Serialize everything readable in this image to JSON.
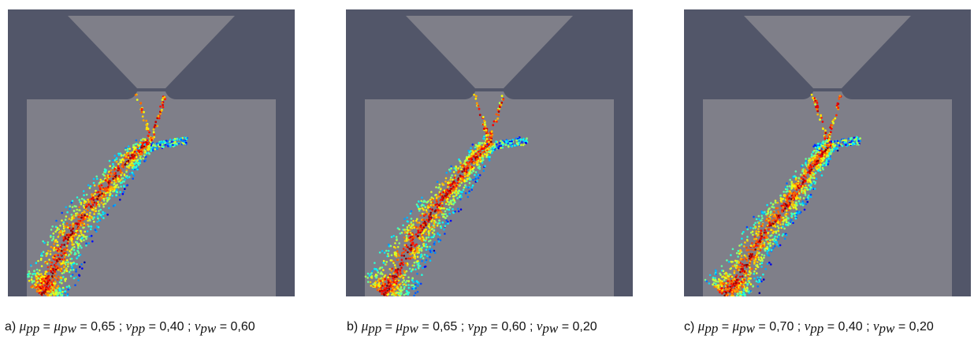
{
  "colors": {
    "wall": "#525669",
    "chamber": "#7f7f89",
    "hopper": "#7f7f89"
  },
  "panels": [
    {
      "id": "a",
      "caption": {
        "prefix": "a)",
        "mu_pp_sym": "μ",
        "mu_pp_sub": "pp",
        "mu_pw_sym": "μ",
        "mu_pw_sub": "pw",
        "mu_value": "= 0,65 ;",
        "nu_pp_sym": "ν",
        "nu_pp_sub": "pp",
        "nu_pp_value": "= 0,40 ;",
        "nu_pw_sym": "ν",
        "nu_pw_sub": "pw",
        "nu_pw_value": "= 0,60"
      }
    },
    {
      "id": "b",
      "caption": {
        "prefix": "b)",
        "mu_pp_sym": "μ",
        "mu_pp_sub": "pp",
        "mu_pw_sym": "μ",
        "mu_pw_sub": "pw",
        "mu_value": "= 0,65 ;",
        "nu_pp_sym": "ν",
        "nu_pp_sub": "pp",
        "nu_pp_value": "= 0,60 ;",
        "nu_pw_sym": "ν",
        "nu_pw_sub": "pw",
        "nu_pw_value": "= 0,20"
      }
    },
    {
      "id": "c",
      "caption": {
        "prefix": "c)",
        "mu_pp_sym": "μ",
        "mu_pp_sub": "pp",
        "mu_pw_sym": "μ",
        "mu_pw_sub": "pw",
        "mu_value": "= 0,70 ;",
        "nu_pp_sym": "ν",
        "nu_pp_sub": "pp",
        "nu_pp_value": "= 0,40 ;",
        "nu_pw_sym": "ν",
        "nu_pw_sub": "pw",
        "nu_pw_value": "= 0,20"
      }
    }
  ]
}
